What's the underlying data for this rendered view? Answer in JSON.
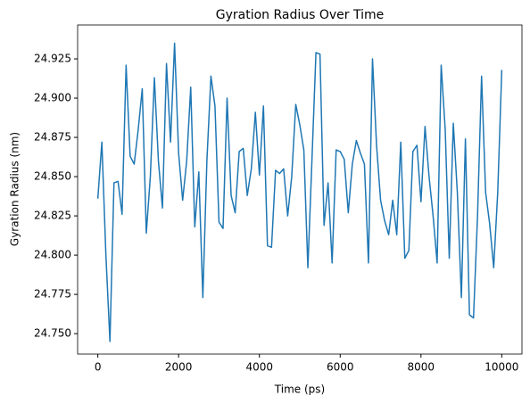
{
  "chart_data": {
    "type": "line",
    "title": "Gyration Radius Over Time",
    "xlabel": "Time (ps)",
    "ylabel": "Gyration Radius (nm)",
    "x": [
      0,
      100,
      200,
      300,
      400,
      500,
      600,
      700,
      800,
      900,
      1000,
      1100,
      1200,
      1300,
      1400,
      1500,
      1600,
      1700,
      1800,
      1900,
      2000,
      2100,
      2200,
      2300,
      2400,
      2500,
      2600,
      2700,
      2800,
      2900,
      3000,
      3100,
      3200,
      3300,
      3400,
      3500,
      3600,
      3700,
      3800,
      3900,
      4000,
      4100,
      4200,
      4300,
      4400,
      4500,
      4600,
      4700,
      4800,
      4900,
      5000,
      5100,
      5200,
      5300,
      5400,
      5500,
      5600,
      5700,
      5800,
      5900,
      6000,
      6100,
      6200,
      6300,
      6400,
      6500,
      6600,
      6700,
      6800,
      6900,
      7000,
      7100,
      7200,
      7300,
      7400,
      7500,
      7600,
      7700,
      7800,
      7900,
      8000,
      8100,
      8200,
      8300,
      8400,
      8500,
      8600,
      8700,
      8800,
      8900,
      9000,
      9100,
      9200,
      9300,
      9400,
      9500,
      9600,
      9700,
      9800,
      9900,
      10000
    ],
    "series": [
      {
        "name": "Gyration Radius",
        "color": "#1f77b4",
        "values": [
          24.836,
          24.872,
          24.8,
          24.745,
          24.846,
          24.847,
          24.826,
          24.921,
          24.863,
          24.858,
          24.88,
          24.906,
          24.814,
          24.85,
          24.913,
          24.86,
          24.83,
          24.922,
          24.872,
          24.935,
          24.865,
          24.835,
          24.86,
          24.907,
          24.818,
          24.853,
          24.773,
          24.86,
          24.914,
          24.895,
          24.821,
          24.817,
          24.9,
          24.838,
          24.827,
          24.866,
          24.868,
          24.838,
          24.855,
          24.891,
          24.851,
          24.895,
          24.806,
          24.805,
          24.854,
          24.852,
          24.855,
          24.825,
          24.85,
          24.896,
          24.883,
          24.867,
          24.792,
          24.86,
          24.929,
          24.928,
          24.819,
          24.846,
          24.795,
          24.867,
          24.866,
          24.861,
          24.827,
          24.858,
          24.873,
          24.865,
          24.858,
          24.795,
          24.925,
          24.87,
          24.835,
          24.822,
          24.813,
          24.835,
          24.813,
          24.872,
          24.798,
          24.803,
          24.866,
          24.87,
          24.834,
          24.882,
          24.85,
          24.825,
          24.795,
          24.921,
          24.88,
          24.798,
          24.884,
          24.84,
          24.773,
          24.874,
          24.762,
          24.76,
          24.825,
          24.914,
          24.84,
          24.82,
          24.792,
          24.84,
          24.918
        ]
      }
    ],
    "xlim": [
      -500,
      10500
    ],
    "xticks": [
      0,
      2000,
      4000,
      6000,
      8000,
      10000
    ],
    "ylim": [
      24.737,
      24.9466
    ],
    "yticks": [
      {
        "value": 24.75,
        "label": "24.750"
      },
      {
        "value": 24.775,
        "label": "24.775"
      },
      {
        "value": 24.8,
        "label": "24.800"
      },
      {
        "value": 24.825,
        "label": "24.825"
      },
      {
        "value": 24.85,
        "label": "24.850"
      },
      {
        "value": 24.875,
        "label": "24.875"
      },
      {
        "value": 24.9,
        "label": "24.900"
      },
      {
        "value": 24.925,
        "label": "24.925"
      }
    ],
    "grid": false
  }
}
